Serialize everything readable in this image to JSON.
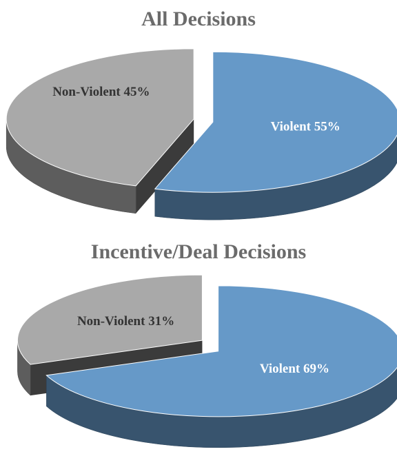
{
  "chart_data": [
    {
      "type": "pie",
      "title": "All Decisions",
      "categories": [
        "Violent",
        "Non-Violent"
      ],
      "values": [
        55,
        45
      ],
      "value_labels": [
        "Violent 55%",
        "Non-Violent 45%"
      ],
      "colors": [
        "#6699c8",
        "#a9a9a9"
      ]
    },
    {
      "type": "pie",
      "title": "Incentive/Deal Decisions",
      "categories": [
        "Violent",
        "Non-Violent"
      ],
      "values": [
        69,
        31
      ],
      "value_labels": [
        "Violent 69%",
        "Non-Violent 31%"
      ],
      "colors": [
        "#6699c8",
        "#a9a9a9"
      ]
    }
  ]
}
